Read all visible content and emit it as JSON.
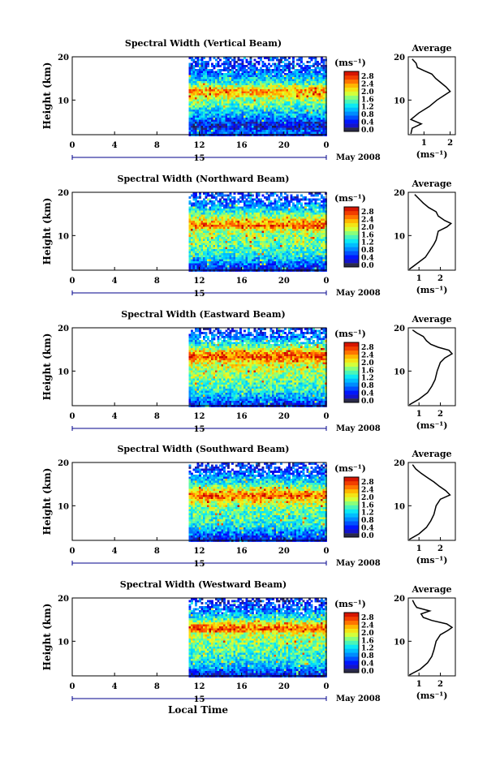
{
  "figure": {
    "date_label": "May 2008",
    "xlabel": "Local Time",
    "day_label": "15",
    "ylabel": "Height (km)",
    "unit_label": "(ms⁻¹)",
    "avg_title": "Average",
    "avg_xlabel": "(ms⁻¹)"
  },
  "chart_data": [
    {
      "type": "heatmap",
      "title": "Spectral Width (Vertical Beam)",
      "xlabel": "Local Time",
      "ylabel": "Height (km)",
      "x_ticks": [
        "0",
        "4",
        "8",
        "12",
        "16",
        "20",
        "0"
      ],
      "x_range_hours": [
        0,
        24
      ],
      "data_start_hour": 11,
      "y_ticks": [
        "20",
        "10"
      ],
      "y_range_km": [
        2,
        20
      ],
      "colorbar": {
        "label": "(ms⁻¹)",
        "ticks": [
          "2.8",
          "2.4",
          "2.0",
          "1.6",
          "1.2",
          "0.8",
          "0.4",
          "0.0"
        ],
        "range": [
          0,
          3.0
        ]
      },
      "band_profile": [
        [
          2,
          0.5
        ],
        [
          3,
          0.8
        ],
        [
          4,
          0.3
        ],
        [
          5,
          0.5
        ],
        [
          6,
          0.9
        ],
        [
          8,
          1.3
        ],
        [
          10,
          1.7
        ],
        [
          11.5,
          2.2
        ],
        [
          12.5,
          2.3
        ],
        [
          14,
          1.5
        ],
        [
          16,
          0.9
        ],
        [
          18,
          0.6
        ],
        [
          20,
          0.5
        ]
      ],
      "average": {
        "title": "Average",
        "xlabel": "(ms⁻¹)",
        "x_ticks": [
          "1",
          "2"
        ],
        "xlim": [
          0.4,
          2.2
        ],
        "heights": [
          2.2,
          3.5,
          4.5,
          5.5,
          7,
          8.5,
          10,
          11,
          12,
          13,
          14,
          15,
          16,
          16.8,
          17.5,
          18.5,
          19.5
        ],
        "values": [
          0.5,
          0.55,
          0.9,
          0.5,
          0.8,
          1.2,
          1.5,
          1.75,
          2.0,
          1.85,
          1.65,
          1.45,
          1.3,
          1.0,
          0.75,
          0.7,
          0.55
        ]
      }
    },
    {
      "type": "heatmap",
      "title": "Spectral Width (Northward Beam)",
      "xlabel": "Local Time",
      "ylabel": "Height (km)",
      "x_ticks": [
        "0",
        "4",
        "8",
        "12",
        "16",
        "20",
        "0"
      ],
      "x_range_hours": [
        0,
        24
      ],
      "data_start_hour": 11,
      "y_ticks": [
        "20",
        "10"
      ],
      "y_range_km": [
        2,
        20
      ],
      "colorbar": {
        "label": "(ms⁻¹)",
        "ticks": [
          "2.8",
          "2.4",
          "2.0",
          "1.6",
          "1.2",
          "0.8",
          "0.4",
          "0.0"
        ],
        "range": [
          0,
          3.0
        ]
      },
      "band_profile": [
        [
          2,
          0.4
        ],
        [
          3,
          0.6
        ],
        [
          4,
          0.9
        ],
        [
          6,
          1.4
        ],
        [
          8,
          1.6
        ],
        [
          10,
          1.7
        ],
        [
          11.5,
          1.9
        ],
        [
          12.5,
          2.6
        ],
        [
          13.5,
          2.2
        ],
        [
          15,
          1.6
        ],
        [
          17,
          1.0
        ],
        [
          19,
          0.6
        ],
        [
          20,
          0.5
        ]
      ],
      "average": {
        "title": "Average",
        "xlabel": "(ms⁻¹)",
        "x_ticks": [
          "1",
          "2"
        ],
        "xlim": [
          0.5,
          2.7
        ],
        "heights": [
          2.2,
          3.5,
          5,
          6.5,
          8,
          9,
          10,
          11,
          12,
          12.8,
          13.5,
          14.5,
          15.5,
          16.5,
          17.5,
          18.5,
          19.5
        ],
        "values": [
          0.55,
          0.9,
          1.3,
          1.5,
          1.7,
          1.8,
          1.85,
          1.9,
          2.3,
          2.5,
          2.2,
          1.9,
          1.8,
          1.45,
          1.2,
          1.0,
          0.8
        ]
      }
    },
    {
      "type": "heatmap",
      "title": "Spectral Width (Eastward Beam)",
      "xlabel": "Local Time",
      "ylabel": "Height (km)",
      "x_ticks": [
        "0",
        "4",
        "8",
        "12",
        "16",
        "20",
        "0"
      ],
      "x_range_hours": [
        0,
        24
      ],
      "data_start_hour": 11,
      "y_ticks": [
        "20",
        "10"
      ],
      "y_range_km": [
        2,
        20
      ],
      "colorbar": {
        "label": "(ms⁻¹)",
        "ticks": [
          "2.8",
          "2.4",
          "2.0",
          "1.6",
          "1.2",
          "0.8",
          "0.4",
          "0.0"
        ],
        "range": [
          0,
          3.0
        ]
      },
      "band_profile": [
        [
          2,
          0.4
        ],
        [
          3,
          0.7
        ],
        [
          4,
          1.0
        ],
        [
          6,
          1.4
        ],
        [
          8,
          1.6
        ],
        [
          10,
          1.8
        ],
        [
          12,
          2.0
        ],
        [
          13.5,
          2.7
        ],
        [
          14.5,
          2.3
        ],
        [
          16,
          1.5
        ],
        [
          18,
          0.9
        ],
        [
          20,
          0.5
        ]
      ],
      "average": {
        "title": "Average",
        "xlabel": "(ms⁻¹)",
        "x_ticks": [
          "1",
          "2"
        ],
        "xlim": [
          0.5,
          2.7
        ],
        "heights": [
          2.2,
          3.5,
          5,
          6.5,
          8,
          10,
          12,
          13,
          14,
          14.8,
          15.5,
          16.2,
          17,
          18,
          18.8,
          19.5
        ],
        "values": [
          0.55,
          1.0,
          1.4,
          1.6,
          1.75,
          1.85,
          2.0,
          2.2,
          2.55,
          2.4,
          1.9,
          1.55,
          1.35,
          1.2,
          0.9,
          0.7
        ]
      }
    },
    {
      "type": "heatmap",
      "title": "Spectral Width (Southward Beam)",
      "xlabel": "Local Time",
      "ylabel": "Height (km)",
      "x_ticks": [
        "0",
        "4",
        "8",
        "12",
        "16",
        "20",
        "0"
      ],
      "x_range_hours": [
        0,
        24
      ],
      "data_start_hour": 11,
      "y_ticks": [
        "20",
        "10"
      ],
      "y_range_km": [
        2,
        20
      ],
      "colorbar": {
        "label": "(ms⁻¹)",
        "ticks": [
          "2.8",
          "2.4",
          "2.0",
          "1.6",
          "1.2",
          "0.8",
          "0.4",
          "0.0"
        ],
        "range": [
          0,
          3.0
        ]
      },
      "band_profile": [
        [
          2,
          0.4
        ],
        [
          3,
          0.6
        ],
        [
          4,
          0.9
        ],
        [
          6,
          1.4
        ],
        [
          8,
          1.5
        ],
        [
          10,
          1.7
        ],
        [
          11.5,
          2.1
        ],
        [
          12.5,
          2.6
        ],
        [
          13.5,
          2.2
        ],
        [
          15,
          1.5
        ],
        [
          17,
          0.9
        ],
        [
          19,
          0.6
        ],
        [
          20,
          0.5
        ]
      ],
      "average": {
        "title": "Average",
        "xlabel": "(ms⁻¹)",
        "x_ticks": [
          "1",
          "2"
        ],
        "xlim": [
          0.5,
          2.7
        ],
        "heights": [
          2.2,
          3.5,
          5,
          6.5,
          8,
          10,
          11.5,
          12.5,
          13.5,
          14.5,
          15.5,
          16.5,
          17.5,
          18.5,
          19.5
        ],
        "values": [
          0.55,
          1.0,
          1.35,
          1.55,
          1.7,
          1.8,
          2.0,
          2.45,
          2.25,
          1.95,
          1.7,
          1.4,
          1.1,
          0.85,
          0.7
        ]
      }
    },
    {
      "type": "heatmap",
      "title": "Spectral Width (Westward Beam)",
      "xlabel": "Local Time",
      "ylabel": "Height (km)",
      "x_ticks": [
        "0",
        "4",
        "8",
        "12",
        "16",
        "20",
        "0"
      ],
      "x_range_hours": [
        0,
        24
      ],
      "data_start_hour": 11,
      "y_ticks": [
        "20",
        "10"
      ],
      "y_range_km": [
        2,
        20
      ],
      "colorbar": {
        "label": "(ms⁻¹)",
        "ticks": [
          "2.8",
          "2.4",
          "2.0",
          "1.6",
          "1.2",
          "0.8",
          "0.4",
          "0.0"
        ],
        "range": [
          0,
          3.0
        ]
      },
      "band_profile": [
        [
          2,
          0.4
        ],
        [
          3,
          0.6
        ],
        [
          4,
          1.0
        ],
        [
          6,
          1.4
        ],
        [
          8,
          1.5
        ],
        [
          10,
          1.7
        ],
        [
          12,
          1.9
        ],
        [
          13,
          2.7
        ],
        [
          14,
          2.3
        ],
        [
          15.5,
          1.4
        ],
        [
          17,
          0.9
        ],
        [
          19,
          0.5
        ],
        [
          20,
          0.4
        ]
      ],
      "average": {
        "title": "Average",
        "xlabel": "(ms⁻¹)",
        "x_ticks": [
          "1",
          "2"
        ],
        "xlim": [
          0.5,
          2.7
        ],
        "heights": [
          2.2,
          3.5,
          5,
          6.5,
          8,
          10,
          11.5,
          12.5,
          13.2,
          14,
          14.8,
          15.5,
          16.3,
          17,
          17.8,
          18.5,
          19.5
        ],
        "values": [
          0.55,
          1.05,
          1.4,
          1.6,
          1.7,
          1.8,
          2.0,
          2.35,
          2.55,
          2.3,
          1.6,
          1.2,
          1.1,
          1.5,
          0.9,
          0.8,
          0.7
        ]
      }
    }
  ]
}
